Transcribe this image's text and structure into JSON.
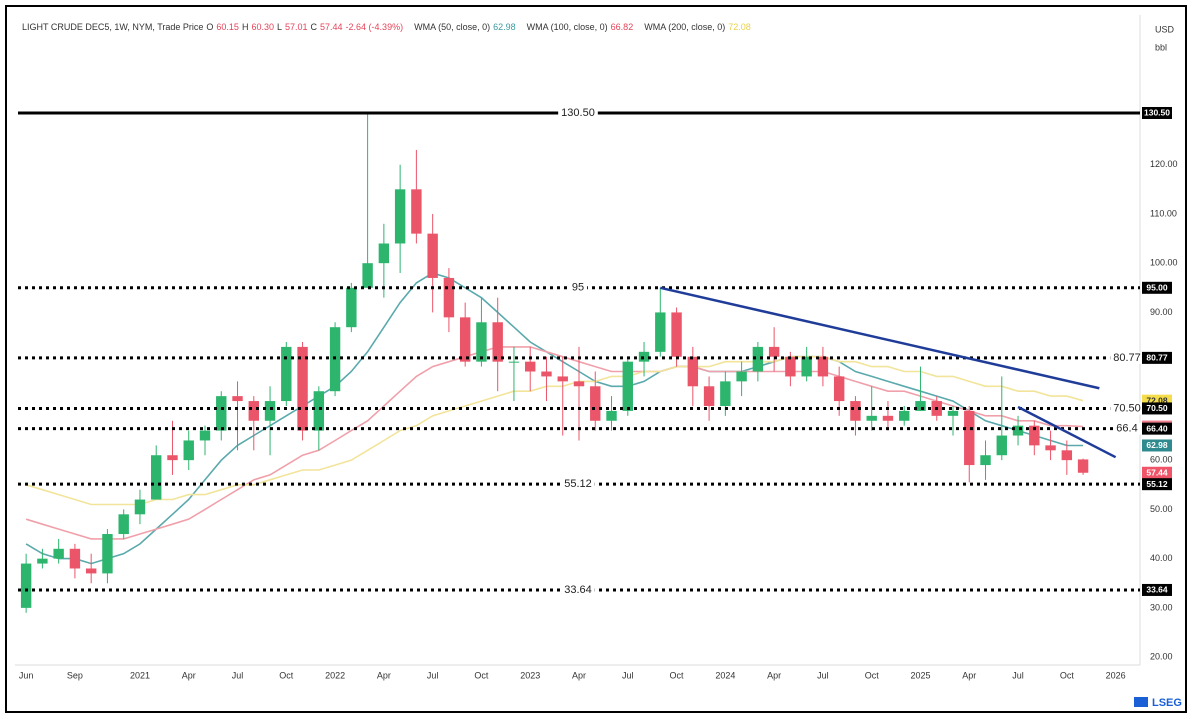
{
  "chart_data": {
    "type": "candlestick",
    "header": [
      {
        "text": "LIGHT CRUDE DEC5, 1W, NYM, Trade Price",
        "color": "#333333"
      },
      {
        "text": "O",
        "color": "#333333"
      },
      {
        "text": "60.15",
        "color": "#e5445a"
      },
      {
        "text": "H",
        "color": "#333333"
      },
      {
        "text": "60.30",
        "color": "#e5445a"
      },
      {
        "text": "L",
        "color": "#333333"
      },
      {
        "text": "57.01",
        "color": "#e5445a"
      },
      {
        "text": "C",
        "color": "#333333"
      },
      {
        "text": "57.44",
        "color": "#e5445a"
      },
      {
        "text": "-2.64 (-4.39%)",
        "color": "#e5445a"
      },
      {
        "text": "WMA (50, close, 0)",
        "color": "#333333"
      },
      {
        "text": "62.98",
        "color": "#3a9aa0"
      },
      {
        "text": "WMA (100, close, 0)",
        "color": "#333333"
      },
      {
        "text": "66.82",
        "color": "#e5445a"
      },
      {
        "text": "WMA (200, close, 0)",
        "color": "#333333"
      },
      {
        "text": "72.08",
        "color": "#e8d24a"
      }
    ],
    "unit_lines": [
      "USD",
      "bbl"
    ],
    "watermark": "LSEG",
    "up_color": "#2db56e",
    "down_color": "#eb5569",
    "x": [
      "2020-06",
      "2020-07",
      "2020-08",
      "2020-09",
      "2020-10",
      "2020-11",
      "2020-12",
      "2021-01",
      "2021-02",
      "2021-03",
      "2021-04",
      "2021-05",
      "2021-06",
      "2021-07",
      "2021-08",
      "2021-09",
      "2021-10",
      "2021-11",
      "2021-12",
      "2022-01",
      "2022-02",
      "2022-03",
      "2022-04",
      "2022-05",
      "2022-06",
      "2022-07",
      "2022-08",
      "2022-09",
      "2022-10",
      "2022-11",
      "2022-12",
      "2023-01",
      "2023-02",
      "2023-03",
      "2023-04",
      "2023-05",
      "2023-06",
      "2023-07",
      "2023-08",
      "2023-09",
      "2023-10",
      "2023-11",
      "2023-12",
      "2024-01",
      "2024-02",
      "2024-03",
      "2024-04",
      "2024-05",
      "2024-06",
      "2024-07",
      "2024-08",
      "2024-09",
      "2024-10",
      "2024-11",
      "2024-12",
      "2025-01",
      "2025-02",
      "2025-03",
      "2025-04",
      "2025-05",
      "2025-06",
      "2025-07",
      "2025-08",
      "2025-09",
      "2025-10",
      "2025-11"
    ],
    "open": [
      30,
      39,
      40,
      42,
      38,
      37,
      45,
      49,
      52,
      61,
      60,
      64,
      66,
      73,
      72,
      68,
      72,
      83,
      66,
      74,
      87,
      95,
      100,
      104,
      115,
      106,
      97,
      89,
      80,
      88,
      80,
      80,
      78,
      77,
      76,
      75,
      68,
      70,
      80,
      82,
      90,
      81,
      75,
      71,
      76,
      78,
      83,
      81,
      77,
      81,
      77,
      72,
      68,
      69,
      68,
      70,
      72,
      69,
      70,
      59,
      61,
      65,
      67,
      63,
      62,
      60.15
    ],
    "high": [
      41,
      42,
      44,
      43,
      41,
      46,
      50,
      54,
      63,
      68,
      66,
      67,
      74,
      76,
      73,
      75,
      84,
      84,
      75,
      88,
      96,
      130.5,
      108,
      120,
      123,
      110,
      99,
      92,
      93,
      93,
      83,
      83,
      81,
      81,
      83,
      78,
      73,
      81,
      84,
      95,
      91,
      83,
      77,
      78,
      80,
      84,
      87,
      82,
      83,
      83,
      79,
      73,
      75,
      72,
      71,
      79,
      73,
      71,
      71,
      64,
      77,
      69,
      68,
      66,
      64,
      60.3
    ],
    "low": [
      29,
      38,
      39,
      36,
      35,
      35,
      44,
      47,
      52,
      57,
      58,
      61,
      64,
      62,
      62,
      61,
      71,
      64,
      62,
      73,
      86,
      95,
      93,
      98,
      104,
      90,
      86,
      79,
      79,
      74,
      72,
      74,
      72,
      65,
      64,
      66,
      66,
      69,
      77,
      81,
      79,
      71,
      68,
      69,
      73,
      76,
      78,
      75,
      76,
      75,
      69,
      65,
      66,
      66,
      67,
      70,
      68,
      65,
      55.5,
      56,
      60,
      63,
      61,
      60,
      57,
      57.01
    ],
    "close": [
      39,
      40,
      42,
      38,
      37,
      45,
      49,
      52,
      61,
      60,
      64,
      66,
      73,
      72,
      68,
      72,
      83,
      66,
      74,
      87,
      95,
      100,
      104,
      115,
      106,
      97,
      89,
      80,
      88,
      80,
      80,
      78,
      77,
      76,
      75,
      68,
      70,
      80,
      82,
      90,
      81,
      75,
      71,
      76,
      78,
      83,
      81,
      77,
      81,
      77,
      72,
      68,
      69,
      68,
      70,
      72,
      69,
      70,
      59,
      61,
      65,
      67,
      63,
      62,
      60,
      57.44
    ],
    "series": [
      {
        "name": "WMA (50, close, 0)",
        "color": "#5aa9ad",
        "values": [
          43,
          41,
          40,
          40,
          39,
          40,
          41,
          43,
          46,
          49,
          52,
          56,
          60,
          63,
          65,
          67,
          69,
          71,
          73,
          75,
          78,
          82,
          87,
          92,
          96,
          98,
          97,
          95,
          93,
          90,
          87,
          84,
          82,
          80,
          78,
          76,
          75,
          75,
          76,
          78,
          79,
          79,
          78,
          78,
          78,
          79,
          80,
          81,
          81,
          81,
          80,
          78,
          77,
          76,
          75,
          74,
          73,
          72,
          70,
          68,
          67,
          66,
          65,
          64,
          63,
          62.98
        ]
      },
      {
        "name": "WMA (100, close, 0)",
        "color": "#f0a0aa",
        "values": [
          48,
          47,
          46,
          45,
          44,
          44,
          44,
          45,
          46,
          47,
          48,
          50,
          52,
          54,
          56,
          57,
          59,
          61,
          62,
          64,
          66,
          68,
          71,
          74,
          77,
          79,
          80,
          81,
          82,
          83,
          83,
          83,
          82,
          81,
          80,
          79,
          78,
          78,
          78,
          78,
          79,
          79,
          78,
          78,
          78,
          78,
          78,
          78,
          78,
          78,
          77,
          76,
          75,
          74,
          74,
          73,
          72,
          71,
          70,
          69,
          69,
          68,
          68,
          67,
          67,
          66.82
        ]
      },
      {
        "name": "WMA (200, close, 0)",
        "color": "#f2e49a",
        "values": [
          55,
          54,
          53,
          52,
          51,
          51,
          51,
          51,
          52,
          52,
          53,
          53,
          54,
          55,
          55,
          56,
          57,
          58,
          58,
          59,
          60,
          62,
          64,
          66,
          67,
          69,
          70,
          71,
          72,
          73,
          74,
          74,
          75,
          75,
          76,
          76,
          77,
          77,
          78,
          78,
          79,
          79,
          79,
          80,
          80,
          80,
          80,
          81,
          81,
          81,
          80,
          80,
          79,
          79,
          78,
          78,
          77,
          77,
          76,
          75,
          75,
          74,
          74,
          73,
          73,
          72.08
        ]
      }
    ],
    "levels": [
      {
        "value": 130.5,
        "label": "130.50",
        "style": "solid",
        "label_position": "center"
      },
      {
        "value": 95,
        "label": "95",
        "style": "dotted",
        "label_position": "center"
      },
      {
        "value": 80.77,
        "label": "80.77",
        "style": "dotted",
        "label_position": "right"
      },
      {
        "value": 70.5,
        "label": "70.50",
        "style": "dotted",
        "label_position": "right"
      },
      {
        "value": 66.4,
        "label": "66.4",
        "style": "dotted",
        "label_position": "right"
      },
      {
        "value": 55.12,
        "label": "55.12",
        "style": "dotted",
        "label_position": "center"
      },
      {
        "value": 33.64,
        "label": "33.64",
        "style": "dotted",
        "label_position": "center"
      }
    ],
    "trendlines": [
      {
        "x": [
          "2023-09",
          "2025-12"
        ],
        "y": [
          95,
          74.6
        ],
        "color": "#1f3c99"
      },
      {
        "x": [
          "2025-07",
          "2026-01"
        ],
        "y": [
          70.8,
          60.6
        ],
        "color": "#1f3c99"
      }
    ],
    "price_tags": [
      {
        "value": 130.5,
        "label": "130.50",
        "color": "#000000",
        "text_color": "#ffffff"
      },
      {
        "value": 95,
        "label": "95.00",
        "color": "#000000",
        "text_color": "#ffffff"
      },
      {
        "value": 80.77,
        "label": "80.77",
        "color": "#000000",
        "text_color": "#ffffff"
      },
      {
        "value": 72.08,
        "label": "72.08",
        "color": "#f5dc4a",
        "text_color": "#333333"
      },
      {
        "value": 70.5,
        "label": "70.50",
        "color": "#000000",
        "text_color": "#ffffff"
      },
      {
        "value": 66.82,
        "label": "66.82",
        "color": "#ef7e8e",
        "text_color": "#ffffff"
      },
      {
        "value": 66.4,
        "label": "66.40",
        "color": "#000000",
        "text_color": "#ffffff"
      },
      {
        "value": 62.98,
        "label": "62.98",
        "color": "#2f8a8f",
        "text_color": "#ffffff"
      },
      {
        "value": 57.44,
        "label": "57.44",
        "color": "#ef5468",
        "text_color": "#ffffff"
      },
      {
        "value": 55.12,
        "label": "55.12",
        "color": "#000000",
        "text_color": "#ffffff"
      },
      {
        "value": 33.64,
        "label": "33.64",
        "color": "#000000",
        "text_color": "#ffffff"
      }
    ],
    "xlim": [
      "2020-06",
      "2026-02"
    ],
    "ylim": [
      18.4,
      150.4
    ],
    "yticks": [
      {
        "value": 20,
        "label": "20.00"
      },
      {
        "value": 30,
        "label": "30.00"
      },
      {
        "value": 40,
        "label": "40.00"
      },
      {
        "value": 50,
        "label": "50.00"
      },
      {
        "value": 60,
        "label": "60.00"
      },
      {
        "value": 90,
        "label": "90.00"
      },
      {
        "value": 100,
        "label": "100.00"
      },
      {
        "value": 110,
        "label": "110.00"
      },
      {
        "value": 120,
        "label": "120.00"
      }
    ],
    "xticks": [
      {
        "value": "2020-06",
        "label": "Jun"
      },
      {
        "value": "2020-09",
        "label": "Sep"
      },
      {
        "value": "2021-01",
        "label": "2021"
      },
      {
        "value": "2021-04",
        "label": "Apr"
      },
      {
        "value": "2021-07",
        "label": "Jul"
      },
      {
        "value": "2021-10",
        "label": "Oct"
      },
      {
        "value": "2022-01",
        "label": "2022"
      },
      {
        "value": "2022-04",
        "label": "Apr"
      },
      {
        "value": "2022-07",
        "label": "Jul"
      },
      {
        "value": "2022-10",
        "label": "Oct"
      },
      {
        "value": "2023-01",
        "label": "2023"
      },
      {
        "value": "2023-04",
        "label": "Apr"
      },
      {
        "value": "2023-07",
        "label": "Jul"
      },
      {
        "value": "2023-10",
        "label": "Oct"
      },
      {
        "value": "2024-01",
        "label": "2024"
      },
      {
        "value": "2024-04",
        "label": "Apr"
      },
      {
        "value": "2024-07",
        "label": "Jul"
      },
      {
        "value": "2024-10",
        "label": "Oct"
      },
      {
        "value": "2025-01",
        "label": "2025"
      },
      {
        "value": "2025-04",
        "label": "Apr"
      },
      {
        "value": "2025-07",
        "label": "Jul"
      },
      {
        "value": "2025-10",
        "label": "Oct"
      },
      {
        "value": "2026-01",
        "label": "2026"
      }
    ],
    "grid": false
  }
}
